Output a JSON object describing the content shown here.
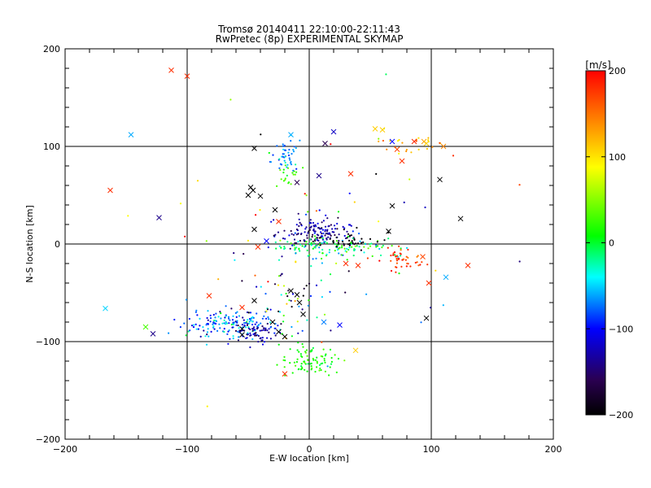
{
  "chart_data": {
    "type": "scatter",
    "title": "Tromsø 20140411 22:10:00-22:11:43",
    "subtitle": "RwPretec (8p) EXPERIMENTAL SKYMAP",
    "xlabel": "E-W location [km]",
    "ylabel": "N-S location [km]",
    "xlim": [
      -200,
      200
    ],
    "ylim": [
      -200,
      200
    ],
    "xticks": [
      "−200",
      "−100",
      "0",
      "100",
      "200"
    ],
    "yticks": [
      "−200",
      "−100",
      "0",
      "100",
      "200"
    ],
    "grid": "major lines at -100, 0, 100 km",
    "colorbar": {
      "label": "[m/s]",
      "range": [
        -200,
        200
      ],
      "ticks": [
        "200",
        "100",
        "0",
        "−100",
        "−200"
      ],
      "colors": [
        "#000000",
        "#2a0050",
        "#0000ff",
        "#00ffff",
        "#00ff00",
        "#ffff00",
        "#ff8000",
        "#ff0000"
      ]
    },
    "markers": {
      "large": "x",
      "small": "dot"
    },
    "clusters": [
      {
        "name": "north-arc",
        "cx": -18,
        "cy": 90,
        "sx": 6,
        "sy": 10,
        "n": 45,
        "v": -70,
        "vs": 20
      },
      {
        "name": "north-arc-green",
        "cx": -20,
        "cy": 72,
        "sx": 5,
        "sy": 6,
        "n": 20,
        "v": 25,
        "vs": 10
      },
      {
        "name": "ne-arc",
        "cx": 80,
        "cy": 103,
        "sx": 15,
        "sy": 5,
        "n": 25,
        "v": 120,
        "vs": 30
      },
      {
        "name": "center-blue",
        "cx": 5,
        "cy": 10,
        "sx": 14,
        "sy": 8,
        "n": 150,
        "v": -140,
        "vs": 25
      },
      {
        "name": "center-green",
        "cx": 20,
        "cy": -3,
        "sx": 28,
        "sy": 5,
        "n": 130,
        "v": -5,
        "vs": 35
      },
      {
        "name": "center-black",
        "cx": 35,
        "cy": 3,
        "sx": 12,
        "sy": 5,
        "n": 35,
        "v": -195,
        "vs": 8
      },
      {
        "name": "east-red",
        "cx": 75,
        "cy": -15,
        "sx": 10,
        "sy": 6,
        "n": 45,
        "v": 175,
        "vs": 20
      },
      {
        "name": "sw-tail",
        "cx": -65,
        "cy": -82,
        "sx": 18,
        "sy": 7,
        "n": 170,
        "v": -75,
        "vs": 30
      },
      {
        "name": "sw-tail-blue",
        "cx": -45,
        "cy": -92,
        "sx": 10,
        "sy": 6,
        "n": 60,
        "v": -130,
        "vs": 20
      },
      {
        "name": "south-green",
        "cx": 0,
        "cy": -120,
        "sx": 12,
        "sy": 8,
        "n": 85,
        "v": 15,
        "vs": 12
      },
      {
        "name": "mid-south",
        "cx": -10,
        "cy": -45,
        "sx": 22,
        "sy": 25,
        "n": 60,
        "v": -60,
        "vs": 90
      },
      {
        "name": "scatter",
        "cx": 0,
        "cy": 0,
        "sx": 70,
        "sy": 70,
        "n": 60,
        "v": 0,
        "vs": 130
      }
    ],
    "crosses": [
      {
        "x": -113,
        "y": 178,
        "v": 180
      },
      {
        "x": -100,
        "y": 172,
        "v": 180
      },
      {
        "x": -146,
        "y": 112,
        "v": -60
      },
      {
        "x": -163,
        "y": 55,
        "v": 180
      },
      {
        "x": -123,
        "y": 27,
        "v": -140
      },
      {
        "x": -167,
        "y": -66,
        "v": -50
      },
      {
        "x": -134,
        "y": -85,
        "v": 30
      },
      {
        "x": -128,
        "y": -92,
        "v": -140
      },
      {
        "x": -82,
        "y": -53,
        "v": 180
      },
      {
        "x": -55,
        "y": -65,
        "v": 180
      },
      {
        "x": -45,
        "y": 98,
        "v": -200
      },
      {
        "x": 20,
        "y": 115,
        "v": -120
      },
      {
        "x": 13,
        "y": 103,
        "v": -160
      },
      {
        "x": -15,
        "y": 112,
        "v": -60
      },
      {
        "x": 54,
        "y": 118,
        "v": 110
      },
      {
        "x": 60,
        "y": 117,
        "v": 110
      },
      {
        "x": 68,
        "y": 105,
        "v": -100
      },
      {
        "x": 72,
        "y": 97,
        "v": 170
      },
      {
        "x": 86,
        "y": 105,
        "v": 180
      },
      {
        "x": 94,
        "y": 105,
        "v": 130
      },
      {
        "x": 96,
        "y": 103,
        "v": 110
      },
      {
        "x": 110,
        "y": 100,
        "v": 140
      },
      {
        "x": 76,
        "y": 85,
        "v": 180
      },
      {
        "x": 34,
        "y": 72,
        "v": 180
      },
      {
        "x": 107,
        "y": 66,
        "v": -200
      },
      {
        "x": 124,
        "y": 26,
        "v": -200
      },
      {
        "x": 8,
        "y": 70,
        "v": -140
      },
      {
        "x": -48,
        "y": 58,
        "v": -200
      },
      {
        "x": -50,
        "y": 50,
        "v": -200
      },
      {
        "x": -46,
        "y": 55,
        "v": -200
      },
      {
        "x": -40,
        "y": 49,
        "v": -200
      },
      {
        "x": -10,
        "y": 63,
        "v": -160
      },
      {
        "x": 68,
        "y": 39,
        "v": -200
      },
      {
        "x": -28,
        "y": 35,
        "v": -200
      },
      {
        "x": -25,
        "y": 23,
        "v": 180
      },
      {
        "x": -45,
        "y": 15,
        "v": -200
      },
      {
        "x": -35,
        "y": 3,
        "v": -100
      },
      {
        "x": -42,
        "y": -3,
        "v": 180
      },
      {
        "x": 65,
        "y": 13,
        "v": -200
      },
      {
        "x": 93,
        "y": -13,
        "v": 170
      },
      {
        "x": 130,
        "y": -22,
        "v": 180
      },
      {
        "x": 98,
        "y": -40,
        "v": 180
      },
      {
        "x": 112,
        "y": -34,
        "v": -60
      },
      {
        "x": 96,
        "y": -76,
        "v": -200
      },
      {
        "x": 30,
        "y": -20,
        "v": 180
      },
      {
        "x": 40,
        "y": -22,
        "v": 180
      },
      {
        "x": 12,
        "y": -80,
        "v": -70
      },
      {
        "x": 25,
        "y": -83,
        "v": -100
      },
      {
        "x": -8,
        "y": -60,
        "v": -200
      },
      {
        "x": -10,
        "y": -52,
        "v": -200
      },
      {
        "x": -15,
        "y": -48,
        "v": -200
      },
      {
        "x": -5,
        "y": -72,
        "v": -200
      },
      {
        "x": -20,
        "y": -95,
        "v": -200
      },
      {
        "x": -25,
        "y": -90,
        "v": -200
      },
      {
        "x": -30,
        "y": -80,
        "v": -200
      },
      {
        "x": -55,
        "y": -87,
        "v": -200
      },
      {
        "x": -55,
        "y": -93,
        "v": -200
      },
      {
        "x": -20,
        "y": -133,
        "v": 180
      },
      {
        "x": 38,
        "y": -109,
        "v": 110
      },
      {
        "x": -45,
        "y": -58,
        "v": -200
      }
    ]
  }
}
